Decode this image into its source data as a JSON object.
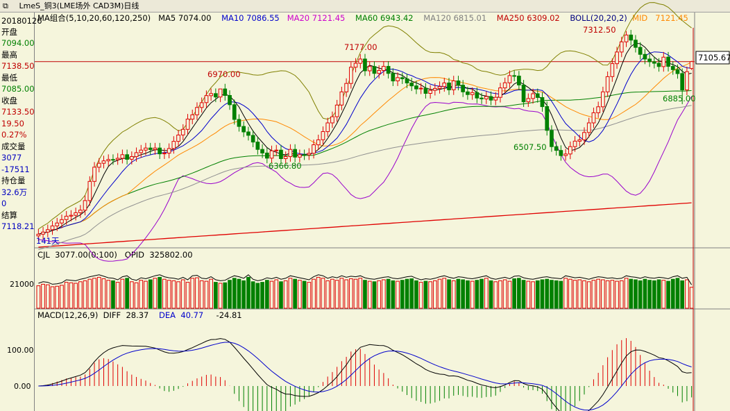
{
  "titlebar": {
    "icon": "window-restore-icon",
    "title": "LmeS_铜3(LME场外 CAD3M)日线"
  },
  "left_panel": {
    "date": "20180126",
    "open_label": "开盘",
    "open": "7094.00",
    "high_label": "最高",
    "high": "7138.50",
    "low_label": "最低",
    "low": "7085.00",
    "close_label": "收盘",
    "close": "7133.50",
    "change": "19.50",
    "change_pct": "0.27%",
    "volume_label": "成交量",
    "volume": "3077",
    "volume_change": "-17511",
    "oi_label": "持仓量",
    "oi": "32.6万",
    "oi_change": "0",
    "settle_label": "结算",
    "settle": "7118.21"
  },
  "main_header": {
    "label": "MA组合(5,10,20,60,120,250)",
    "ma5": "MA5 7074.00",
    "ma10": "MA10 7086.55",
    "ma20": "MA20 7121.45",
    "ma60": "MA60 6943.42",
    "ma120": "MA120 6815.01",
    "ma250": "MA250 6309.02",
    "boll": "BOLL(20,20,2)",
    "mid": "MID",
    "mid_val": "7121.45"
  },
  "annotations": {
    "p1": "6970.00",
    "p2": "6366.80",
    "p3": "7177.00",
    "p4": "6507.50",
    "p5": "7312.50",
    "p6": "6885.00",
    "price_tag": "7105.67",
    "period": "141天"
  },
  "vol_header": {
    "label": "CJL",
    "cjl": "3077.00(0:100)",
    "opid": "OPID",
    "opid_val": "325802.00",
    "tick": "21000"
  },
  "macd_header": {
    "label": "MACD(12,26,9)",
    "diff": "DIFF",
    "diff_val": "28.37",
    "dea": "DEA",
    "dea_val": "40.77",
    "macd_val": "-24.81",
    "tick_high": "100.00",
    "tick_zero": "0.00"
  },
  "colors": {
    "up": "#e00000",
    "down": "#008000",
    "ma5": "#000000",
    "ma10": "#0000cc",
    "ma20": "#ff8800",
    "ma60": "#008000",
    "ma120": "#909090",
    "ma250": "#e00000",
    "boll_upper": "#808000",
    "boll_lower": "#9900cc"
  },
  "chart_data": {
    "type": "candlestick",
    "title": "LmeS_铜3(LME场外 CAD3M)日线",
    "ylim": [
      6050,
      7380
    ],
    "x": [
      0,
      1,
      2,
      3,
      4,
      5,
      6,
      7,
      8,
      9,
      10,
      11,
      12,
      13,
      14,
      15,
      16,
      17,
      18,
      19,
      20,
      21,
      22,
      23,
      24,
      25,
      26,
      27,
      28,
      29,
      30,
      31,
      32,
      33,
      34,
      35,
      36,
      37,
      38,
      39,
      40,
      41,
      42,
      43,
      44,
      45,
      46,
      47,
      48,
      49,
      50,
      51,
      52,
      53,
      54,
      55,
      56,
      57,
      58,
      59,
      60,
      61,
      62,
      63,
      64,
      65,
      66,
      67,
      68,
      69,
      70,
      71,
      72,
      73,
      74,
      75,
      76,
      77,
      78,
      79,
      80,
      81,
      82,
      83,
      84,
      85,
      86,
      87,
      88,
      89,
      90,
      91,
      92,
      93,
      94,
      95,
      96,
      97,
      98,
      99,
      100,
      101,
      102,
      103,
      104,
      105,
      106,
      107,
      108,
      109,
      110,
      111,
      112,
      113,
      114,
      115,
      116,
      117,
      118,
      119,
      120,
      121,
      122,
      123,
      124,
      125,
      126,
      127,
      128,
      129,
      130,
      131,
      132,
      133,
      134,
      135,
      136,
      137,
      138,
      139,
      140
    ],
    "close": [
      6126,
      6138,
      6152,
      6174,
      6191,
      6211,
      6231,
      6236,
      6251,
      6266,
      6322,
      6434,
      6517,
      6540,
      6554,
      6562,
      6561,
      6569,
      6590,
      6563,
      6579,
      6602,
      6617,
      6629,
      6620,
      6629,
      6595,
      6599,
      6626,
      6668,
      6705,
      6738,
      6798,
      6823,
      6866,
      6894,
      6935,
      6947,
      6927,
      6974,
      6936,
      6882,
      6796,
      6755,
      6723,
      6703,
      6664,
      6621,
      6600,
      6570,
      6613,
      6617,
      6567,
      6579,
      6621,
      6576,
      6590,
      6589,
      6598,
      6648,
      6677,
      6725,
      6776,
      6812,
      6880,
      6957,
      7006,
      7101,
      7124,
      7149,
      7080,
      7105,
      7065,
      7082,
      7106,
      7065,
      7021,
      7040,
      7033,
      7009,
      6992,
      6974,
      6978,
      6948,
      6966,
      6977,
      6988,
      7009,
      6969,
      7021,
      6996,
      6957,
      6941,
      6953,
      6921,
      6916,
      6930,
      6909,
      6925,
      6980,
      7010,
      7052,
      7049,
      6997,
      6899,
      6918,
      6946,
      6924,
      6871,
      6732,
      6637,
      6615,
      6585,
      6594,
      6637,
      6669,
      6677,
      6720,
      6776,
      6835,
      6870,
      6957,
      7046,
      7122,
      7190,
      7249,
      7289,
      7259,
      7217,
      7176,
      7149,
      7133,
      7124,
      7105,
      7160,
      7106,
      7087,
      7064,
      6968,
      7075,
      7134
    ],
    "open": [
      6116,
      6126,
      6138,
      6152,
      6174,
      6191,
      6211,
      6231,
      6236,
      6251,
      6266,
      6322,
      6434,
      6517,
      6540,
      6554,
      6562,
      6561,
      6569,
      6590,
      6563,
      6579,
      6602,
      6617,
      6629,
      6620,
      6629,
      6595,
      6599,
      6626,
      6668,
      6705,
      6738,
      6798,
      6823,
      6866,
      6894,
      6935,
      6947,
      6927,
      6974,
      6936,
      6882,
      6796,
      6755,
      6723,
      6703,
      6664,
      6621,
      6600,
      6570,
      6613,
      6617,
      6567,
      6579,
      6621,
      6576,
      6590,
      6589,
      6598,
      6648,
      6677,
      6725,
      6776,
      6812,
      6880,
      6957,
      7006,
      7101,
      7124,
      7149,
      7080,
      7105,
      7065,
      7082,
      7106,
      7065,
      7021,
      7040,
      7033,
      7009,
      6992,
      6974,
      6978,
      6948,
      6966,
      6977,
      6988,
      7009,
      6969,
      7021,
      6996,
      6957,
      6941,
      6953,
      6921,
      6916,
      6930,
      6909,
      6925,
      6980,
      7010,
      7052,
      7049,
      6997,
      6899,
      6918,
      6946,
      6924,
      6871,
      6732,
      6637,
      6615,
      6585,
      6594,
      6637,
      6669,
      6677,
      6720,
      6776,
      6835,
      6870,
      6957,
      7046,
      7122,
      7190,
      7249,
      7289,
      7259,
      7217,
      7176,
      7149,
      7133,
      7124,
      7105,
      7160,
      7106,
      7087,
      7064,
      6968,
      7094
    ],
    "high": [
      6156,
      6168,
      6182,
      6204,
      6221,
      6241,
      6261,
      6266,
      6281,
      6296,
      6352,
      6464,
      6547,
      6570,
      6584,
      6592,
      6592,
      6599,
      6620,
      6620,
      6609,
      6632,
      6647,
      6659,
      6659,
      6659,
      6659,
      6629,
      6656,
      6698,
      6735,
      6768,
      6828,
      6853,
      6896,
      6924,
      6965,
      6977,
      6977,
      6970,
      7004,
      6966,
      6912,
      6826,
      6785,
      6753,
      6733,
      6694,
      6651,
      6630,
      6643,
      6647,
      6647,
      6609,
      6651,
      6651,
      6620,
      6620,
      6628,
      6678,
      6707,
      6755,
      6806,
      6842,
      6910,
      6987,
      7036,
      7131,
      7154,
      7177,
      7179,
      7135,
      7135,
      7112,
      7136,
      7136,
      7095,
      7070,
      7070,
      7063,
      7039,
      7022,
      7008,
      7008,
      6996,
      7007,
      7018,
      7039,
      7039,
      7051,
      7051,
      7026,
      6987,
      6983,
      6983,
      6951,
      6960,
      6960,
      6955,
      7010,
      7040,
      7082,
      7082,
      7079,
      7027,
      6948,
      6976,
      6976,
      6954,
      6901,
      6762,
      6667,
      6645,
      6624,
      6667,
      6699,
      6707,
      6750,
      6806,
      6865,
      6900,
      6987,
      7076,
      7152,
      7220,
      7279,
      7312,
      7319,
      7289,
      7247,
      7206,
      7179,
      7163,
      7154,
      7190,
      7190,
      7136,
      7117,
      7094,
      7105,
      7138
    ],
    "low": [
      6086,
      6096,
      6108,
      6122,
      6144,
      6161,
      6181,
      6201,
      6206,
      6221,
      6236,
      6292,
      6404,
      6487,
      6510,
      6524,
      6531,
      6531,
      6539,
      6533,
      6533,
      6549,
      6572,
      6587,
      6590,
      6590,
      6565,
      6565,
      6569,
      6596,
      6638,
      6675,
      6708,
      6768,
      6793,
      6836,
      6864,
      6905,
      6897,
      6897,
      6906,
      6852,
      6766,
      6725,
      6693,
      6673,
      6634,
      6591,
      6570,
      6540,
      6540,
      6583,
      6537,
      6537,
      6549,
      6546,
      6546,
      6559,
      6559,
      6568,
      6618,
      6647,
      6695,
      6746,
      6782,
      6850,
      6927,
      6976,
      7071,
      7094,
      7050,
      7050,
      7035,
      7035,
      7052,
      7035,
      6991,
      6991,
      7003,
      6979,
      6962,
      6944,
      6944,
      6918,
      6918,
      6936,
      6947,
      6958,
      6939,
      6939,
      6966,
      6927,
      6911,
      6911,
      6891,
      6886,
      6886,
      6879,
      6879,
      6895,
      6950,
      6980,
      7019,
      6967,
      6869,
      6869,
      6888,
      6894,
      6841,
      6702,
      6607,
      6585,
      6555,
      6555,
      6564,
      6607,
      6639,
      6647,
      6690,
      6746,
      6805,
      6840,
      6927,
      7016,
      7092,
      7160,
      7219,
      7229,
      7187,
      7146,
      7119,
      7103,
      7094,
      7075,
      7075,
      7076,
      7057,
      7034,
      6885,
      6938,
      7085
    ],
    "volume": [
      45,
      48,
      47,
      43,
      44,
      46,
      52,
      51,
      50,
      53,
      55,
      58,
      60,
      62,
      59,
      56,
      55,
      52,
      58,
      60,
      53,
      51,
      56,
      54,
      57,
      60,
      62,
      58,
      56,
      55,
      53,
      57,
      52,
      60,
      61,
      55,
      54,
      58,
      52,
      50,
      51,
      56,
      60,
      58,
      55,
      62,
      53,
      50,
      52,
      56,
      54,
      57,
      53,
      55,
      60,
      58,
      56,
      54,
      52,
      58,
      62,
      60,
      55,
      58,
      56,
      60,
      57,
      59,
      58,
      60,
      56,
      54,
      53,
      55,
      57,
      58,
      55,
      54,
      56,
      58,
      59,
      55,
      52,
      54,
      53,
      55,
      58,
      60,
      57,
      55,
      58,
      57,
      55,
      54,
      56,
      58,
      60,
      55,
      53,
      55,
      57,
      54,
      59,
      60,
      56,
      54,
      53,
      55,
      57,
      58,
      56,
      55,
      54,
      60,
      58,
      56,
      57,
      55,
      53,
      56,
      58,
      57,
      55,
      56,
      54,
      55,
      60,
      58,
      57,
      55,
      58,
      56,
      55,
      57,
      56,
      54,
      58,
      60,
      55,
      57,
      42
    ]
  }
}
